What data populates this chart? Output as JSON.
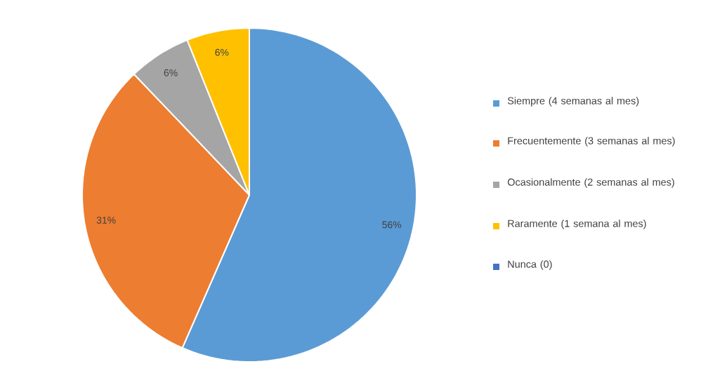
{
  "chart_data": {
    "type": "pie",
    "categories": [
      "Siempre (4 semanas al mes)",
      "Frecuentemente (3 semanas al mes)",
      "Ocasionalmente (2 semanas al mes)",
      "Raramente (1 semana al mes)",
      "Nunca (0)"
    ],
    "values": [
      56,
      31,
      6,
      6,
      0
    ],
    "colors": [
      "#5b9bd5",
      "#ed7d31",
      "#a5a5a5",
      "#ffc000",
      "#4472c4"
    ],
    "value_labels": [
      "56%",
      "31%",
      "6%",
      "6%",
      null
    ],
    "legend": "right"
  }
}
